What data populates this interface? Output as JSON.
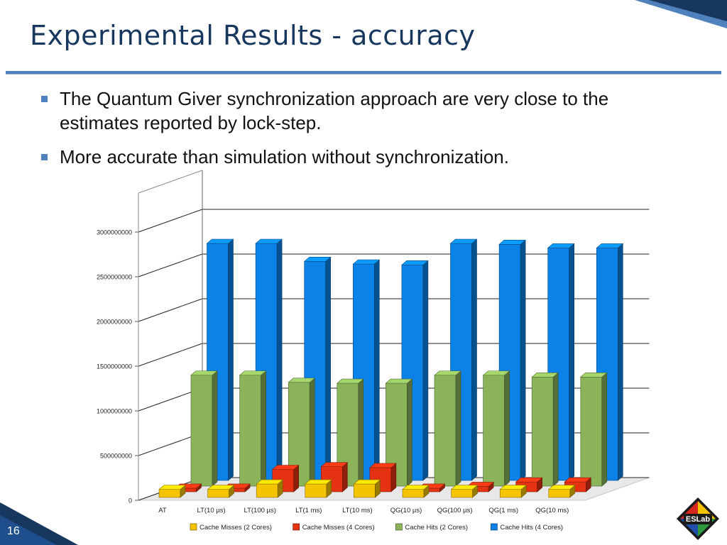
{
  "slide": {
    "title": "Experimental Results - accuracy",
    "bullets": [
      "The Quantum Giver synchronization approach are very close to the estimates reported by lock-step.",
      "More accurate than simulation without synchronization."
    ],
    "page_number": "16",
    "logo_text": "ESLab"
  },
  "colors": {
    "title": "#17375e",
    "accent": "#4f81bd"
  },
  "chart_data": {
    "type": "bar",
    "categories": [
      "AT",
      "LT(10 µs)",
      "LT(100 µs)",
      "LT(1 ms)",
      "LT(10 ms)",
      "QG(10 µs)",
      "QG(100 µs)",
      "QG(1 ms)",
      "QG(10 ms)"
    ],
    "yticks": [
      "0",
      "500000000",
      "1000000000",
      "1500000000",
      "2000000000",
      "2500000000",
      "3000000000"
    ],
    "ylim": [
      0,
      3000000000
    ],
    "legend_position": "bottom",
    "series": [
      {
        "name": "Cache Misses (2 Cores)",
        "color": "#f5c400",
        "values": [
          90000000,
          90000000,
          150000000,
          150000000,
          150000000,
          90000000,
          90000000,
          90000000,
          90000000
        ]
      },
      {
        "name": "Cache Misses (4 Cores)",
        "color": "#e53212",
        "values": [
          40000000,
          40000000,
          250000000,
          280000000,
          270000000,
          40000000,
          60000000,
          110000000,
          110000000
        ]
      },
      {
        "name": "Cache Hits (2 Cores)",
        "color": "#8ab35a",
        "values": [
          1240000000,
          1240000000,
          1160000000,
          1150000000,
          1150000000,
          1240000000,
          1240000000,
          1220000000,
          1220000000
        ]
      },
      {
        "name": "Cache Hits (4 Cores)",
        "color": "#0a82e8",
        "values": [
          2650000000,
          2650000000,
          2450000000,
          2420000000,
          2410000000,
          2650000000,
          2640000000,
          2600000000,
          2600000000
        ]
      }
    ]
  }
}
